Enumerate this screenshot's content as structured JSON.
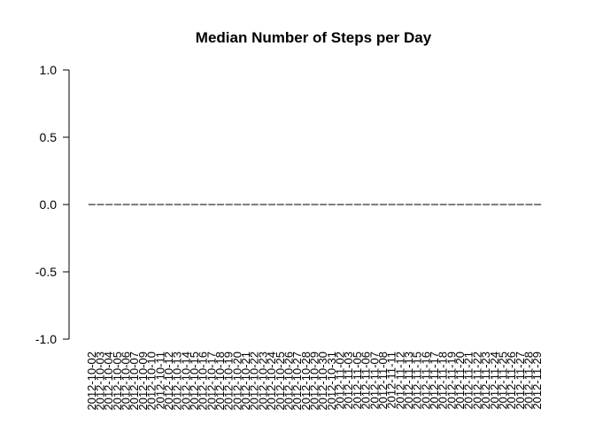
{
  "chart_data": {
    "type": "bar",
    "title": "Median Number of Steps per Day",
    "xlabel": "",
    "ylabel": "",
    "ylim": [
      -1.0,
      1.0
    ],
    "y_ticks": [
      "-1.0",
      "-0.5",
      "0.0",
      "0.5",
      "1.0"
    ],
    "grid": false,
    "categories": [
      "2012-10-02",
      "2012-10-03",
      "2012-10-04",
      "2012-10-05",
      "2012-10-06",
      "2012-10-07",
      "2012-10-09",
      "2012-10-10",
      "2012-10-11",
      "2012-10-12",
      "2012-10-13",
      "2012-10-14",
      "2012-10-15",
      "2012-10-16",
      "2012-10-17",
      "2012-10-18",
      "2012-10-19",
      "2012-10-20",
      "2012-10-21",
      "2012-10-22",
      "2012-10-23",
      "2012-10-24",
      "2012-10-25",
      "2012-10-26",
      "2012-10-27",
      "2012-10-28",
      "2012-10-29",
      "2012-10-30",
      "2012-10-31",
      "2012-11-02",
      "2012-11-03",
      "2012-11-05",
      "2012-11-06",
      "2012-11-07",
      "2012-11-08",
      "2012-11-11",
      "2012-11-12",
      "2012-11-13",
      "2012-11-15",
      "2012-11-16",
      "2012-11-17",
      "2012-11-18",
      "2012-11-19",
      "2012-11-20",
      "2012-11-21",
      "2012-11-22",
      "2012-11-23",
      "2012-11-24",
      "2012-11-25",
      "2012-11-26",
      "2012-11-27",
      "2012-11-28",
      "2012-11-29"
    ],
    "values": [
      0,
      0,
      0,
      0,
      0,
      0,
      0,
      0,
      0,
      0,
      0,
      0,
      0,
      0,
      0,
      0,
      0,
      0,
      0,
      0,
      0,
      0,
      0,
      0,
      0,
      0,
      0,
      0,
      0,
      0,
      0,
      0,
      0,
      0,
      0,
      0,
      0,
      0,
      0,
      0,
      0,
      0,
      0,
      0,
      0,
      0,
      0,
      0,
      0,
      0,
      0,
      0,
      0
    ]
  }
}
